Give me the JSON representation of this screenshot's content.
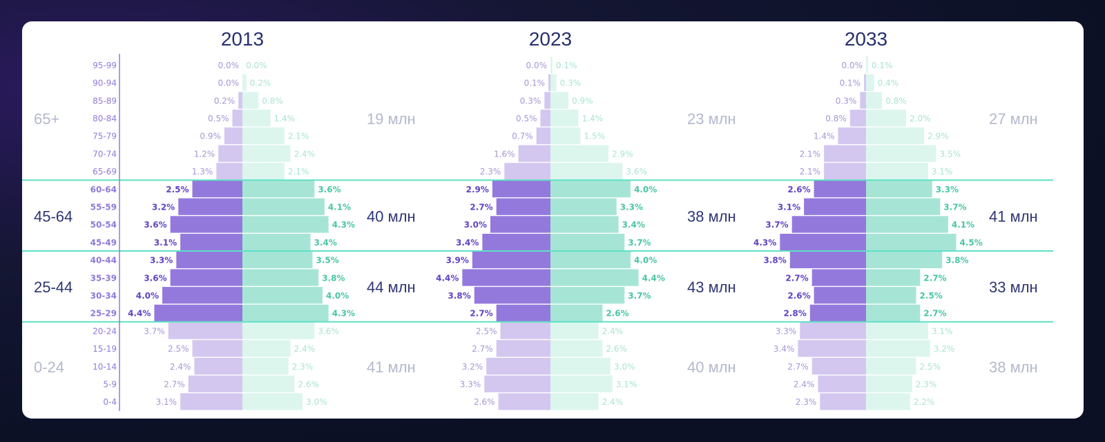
{
  "chart_data": {
    "type": "bar",
    "subtype": "population-pyramid",
    "colors": {
      "left_dim": "#d3c7f0",
      "left_dark": "#9479dd",
      "right_dim": "#dcf6ee",
      "right_dark": "#a6e5d5",
      "left_label_dim": "#a695d8",
      "left_label_dark": "#5f43c4",
      "right_label_dim": "#a9e4d2",
      "right_label_dark": "#49c6a4",
      "separator": "#5fe0c4",
      "axis": "#8f7ad9",
      "age_label": "#8f7ad9",
      "group_dim": "#b4b8cc",
      "group_dark": "#2d3573",
      "title": "#26306e"
    },
    "age_groups": [
      "95-99",
      "90-94",
      "85-89",
      "80-84",
      "75-79",
      "70-74",
      "65-69",
      "60-64",
      "55-59",
      "50-54",
      "45-49",
      "40-44",
      "35-39",
      "30-34",
      "25-29",
      "20-24",
      "15-19",
      "10-14",
      "5-9",
      "0-4"
    ],
    "sections": [
      {
        "name": "65+",
        "highlight": false
      },
      {
        "name": "45-64",
        "highlight": true
      },
      {
        "name": "25-44",
        "highlight": true
      },
      {
        "name": "0-24",
        "highlight": false
      }
    ],
    "pyramids": [
      {
        "title": "2013",
        "left": [
          0.0,
          0.0,
          0.2,
          0.5,
          0.9,
          1.2,
          1.3,
          2.5,
          3.2,
          3.6,
          3.1,
          3.3,
          3.6,
          4.0,
          4.4,
          3.7,
          2.5,
          2.4,
          2.7,
          3.1
        ],
        "right": [
          0.0,
          0.2,
          0.8,
          1.4,
          2.1,
          2.4,
          2.1,
          3.6,
          4.1,
          4.3,
          3.4,
          3.5,
          3.8,
          4.0,
          4.3,
          3.6,
          2.4,
          2.3,
          2.6,
          3.0
        ],
        "totals": [
          "19 млн",
          "40 млн",
          "44 млн",
          "41 млн"
        ]
      },
      {
        "title": "2023",
        "left": [
          0.0,
          0.1,
          0.3,
          0.5,
          0.7,
          1.6,
          2.3,
          2.9,
          2.7,
          3.0,
          3.4,
          3.9,
          4.4,
          3.8,
          2.7,
          2.5,
          2.7,
          3.2,
          3.3,
          2.6
        ],
        "right": [
          0.1,
          0.3,
          0.9,
          1.4,
          1.5,
          2.9,
          3.6,
          4.0,
          3.3,
          3.4,
          3.7,
          4.0,
          4.4,
          3.7,
          2.6,
          2.4,
          2.6,
          3.0,
          3.1,
          2.4
        ],
        "totals": [
          "23 млн",
          "38 млн",
          "43 млн",
          "40 млн"
        ]
      },
      {
        "title": "2033",
        "left": [
          0.0,
          0.1,
          0.3,
          0.8,
          1.4,
          2.1,
          2.1,
          2.6,
          3.1,
          3.7,
          4.3,
          3.8,
          2.7,
          2.6,
          2.8,
          3.3,
          3.4,
          2.7,
          2.4,
          2.3
        ],
        "right": [
          0.1,
          0.4,
          0.8,
          2.0,
          2.9,
          3.5,
          3.1,
          3.3,
          3.7,
          4.1,
          4.5,
          3.8,
          2.7,
          2.5,
          2.7,
          3.1,
          3.2,
          2.5,
          2.3,
          2.2
        ],
        "totals": [
          "27 млн",
          "41 млн",
          "33 млн",
          "38 млн"
        ]
      }
    ]
  }
}
